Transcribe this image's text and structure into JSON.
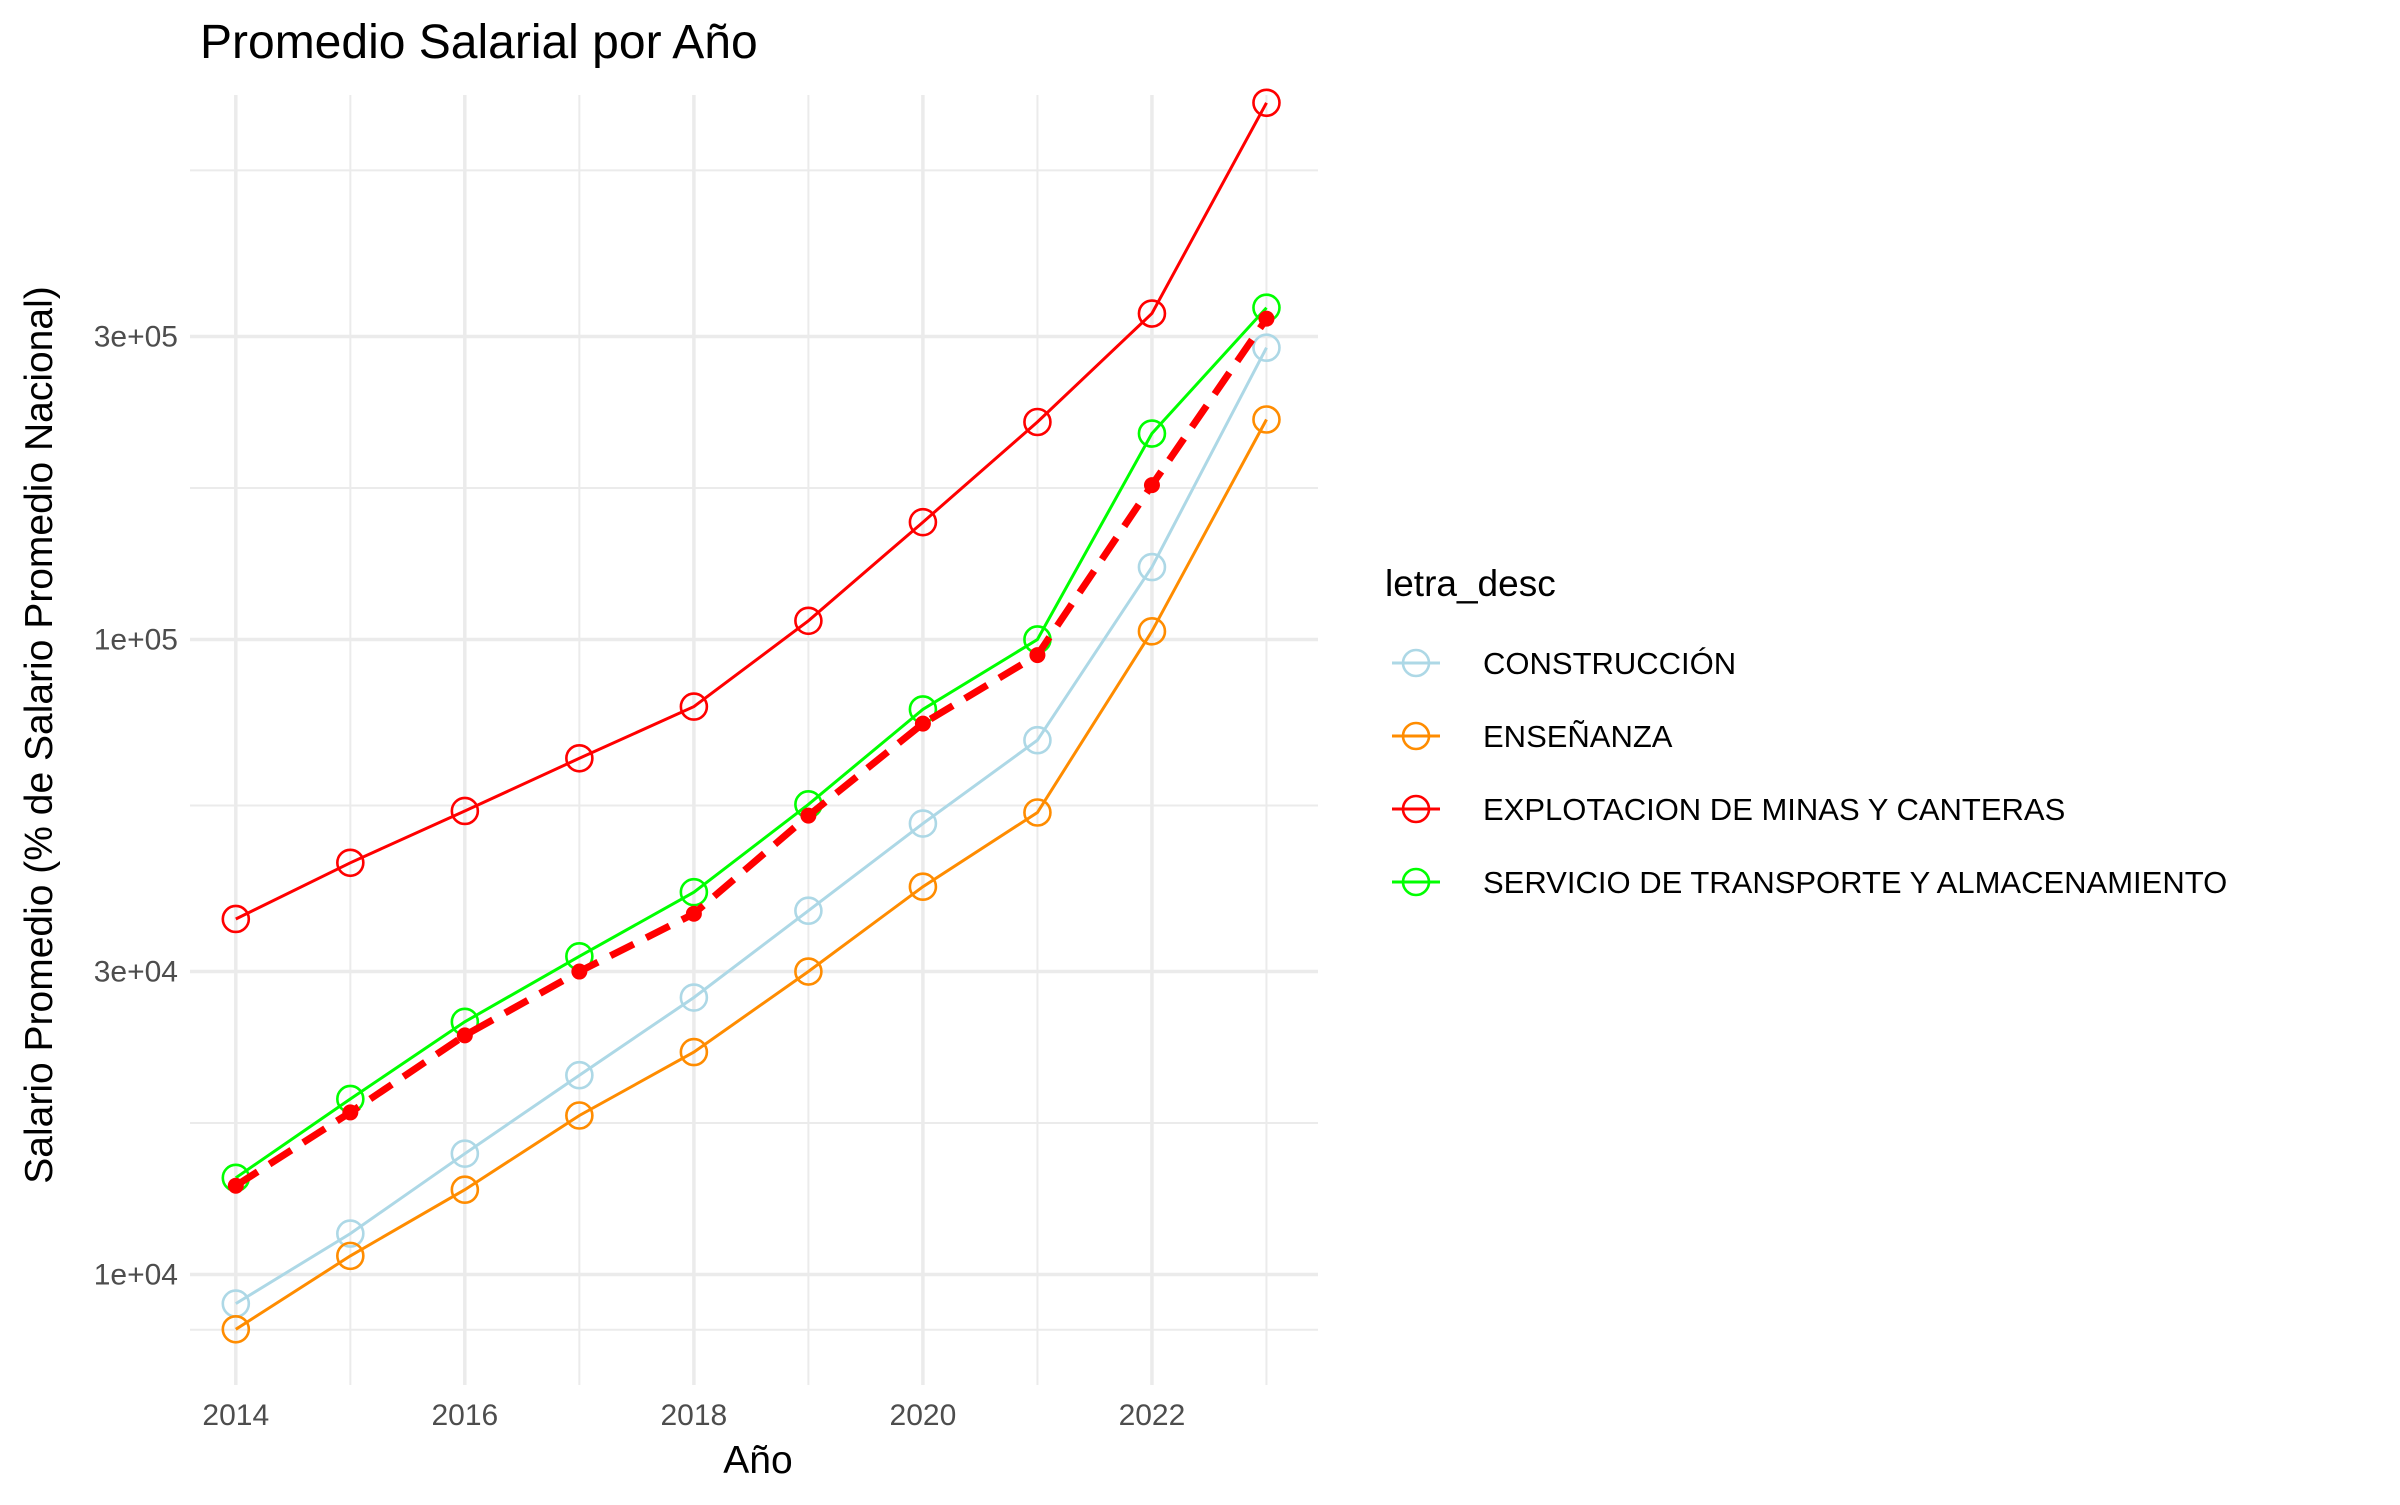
{
  "chart_data": {
    "type": "line",
    "title": "Promedio Salarial por Año",
    "xlabel": "Año",
    "ylabel": "Salario Promedio (% de Salario Promedio Nacional)",
    "y_scale": "log10",
    "xlim": [
      2013.6,
      2023.45
    ],
    "ylim": [
      6700,
      720000
    ],
    "x_ticks": [
      2014,
      2016,
      2018,
      2020,
      2022
    ],
    "x_tick_labels": [
      "2014",
      "2016",
      "2018",
      "2020",
      "2022"
    ],
    "y_ticks": [
      10000,
      30000,
      100000,
      300000
    ],
    "y_tick_labels": [
      "1e+04",
      "3e+04",
      "1e+05",
      "3e+05"
    ],
    "grid": true,
    "legend": {
      "title": "letra_desc",
      "placement": "right"
    },
    "x": [
      2014,
      2015,
      2016,
      2017,
      2018,
      2019,
      2020,
      2021,
      2022,
      2023
    ],
    "series": [
      {
        "name": "CONSTRUCCIÓN",
        "color": "#add8e6",
        "values": [
          9000,
          11600,
          15500,
          20600,
          27300,
          37400,
          51300,
          69400,
          130000,
          288000
        ]
      },
      {
        "name": "ENSEÑANZA",
        "color": "#ff8c00",
        "values": [
          8200,
          10700,
          13600,
          17800,
          22400,
          30000,
          40800,
          53400,
          103000,
          222000
        ]
      },
      {
        "name": "EXPLOTACION DE MINAS Y CANTERAS",
        "color": "#ff0000",
        "values": [
          36300,
          44500,
          53700,
          65000,
          78400,
          107000,
          153000,
          220000,
          326000,
          700000
        ]
      },
      {
        "name": "SERVICIO DE TRANSPORTE Y ALMACENAMIENTO",
        "color": "#00ff00",
        "values": [
          14200,
          18900,
          25000,
          31700,
          40000,
          55000,
          77600,
          100000,
          211000,
          333000
        ]
      }
    ],
    "reference_line": {
      "style": "dashed",
      "color": "#ff0000",
      "values": [
        13800,
        18000,
        23800,
        30000,
        37000,
        52800,
        73700,
        94500,
        175000,
        320000
      ]
    }
  }
}
